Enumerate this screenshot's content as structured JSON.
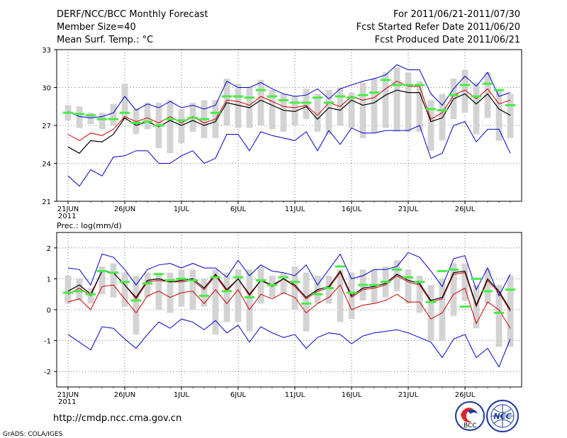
{
  "header": {
    "title": "DERF/NCC/BCC Monthly Forecast",
    "member_size": "Member Size=40",
    "variable": "Mean Surf. Temp.: °C",
    "period": "For 2011/06/21-2011/07/30",
    "started": "Fcst Started Refer Date 2011/06/20",
    "produced": "Fcst Produced Date 2011/06/21"
  },
  "footer": {
    "url": "http://cmdp.ncc.cma.gov.cn",
    "credit": "GrADS: COLA/IGES",
    "logo_bcc": "BCC",
    "logo_ncc": "NCC"
  },
  "colors": {
    "max_min": "#0000cc",
    "mean": "#000000",
    "median": "#cc0000",
    "observed_mark": "#44ee44",
    "spread_bar": "#d3d3d3",
    "grid": "#555555"
  },
  "chart_data": [
    {
      "type": "line",
      "title": "Mean Surf. Temp.: °C",
      "x_tick_labels": [
        "21JUN",
        "26JUN",
        "1JUL",
        "6JUL",
        "11JUL",
        "16JUL",
        "21JUL",
        "26JUL"
      ],
      "x_tick_days": [
        1,
        6,
        11,
        16,
        21,
        26,
        31,
        36
      ],
      "year_label": "2011",
      "ylim": [
        21,
        33
      ],
      "yticks": [
        21,
        24,
        27,
        30,
        33
      ],
      "days": [
        1,
        2,
        3,
        4,
        5,
        6,
        7,
        8,
        9,
        10,
        11,
        12,
        13,
        14,
        15,
        16,
        17,
        18,
        19,
        20,
        21,
        22,
        23,
        24,
        25,
        26,
        27,
        28,
        29,
        30,
        31,
        32,
        33,
        34,
        35,
        36,
        37,
        38,
        39,
        40
      ],
      "series": [
        {
          "name": "max",
          "values": [
            28.1,
            27.7,
            27.6,
            27.7,
            28.0,
            29.3,
            28.2,
            28.7,
            28.4,
            28.9,
            28.4,
            28.6,
            28.3,
            28.6,
            30.5,
            30.0,
            30.0,
            30.4,
            29.9,
            29.5,
            29.3,
            29.4,
            29.9,
            29.1,
            29.9,
            30.2,
            30.5,
            30.7,
            31.0,
            31.8,
            31.4,
            31.4,
            29.5,
            28.6,
            29.9,
            30.9,
            30.1,
            31.2,
            29.3,
            29.6
          ]
        },
        {
          "name": "mean",
          "values": [
            25.3,
            24.8,
            25.8,
            25.7,
            26.3,
            27.6,
            27.0,
            27.3,
            26.9,
            27.4,
            27.0,
            27.4,
            27.0,
            27.3,
            28.8,
            28.6,
            28.4,
            29.0,
            28.6,
            28.2,
            28.1,
            28.5,
            27.5,
            28.4,
            28.2,
            29.0,
            28.6,
            28.8,
            29.4,
            29.8,
            29.6,
            29.6,
            27.3,
            27.6,
            29.1,
            29.5,
            28.7,
            29.5,
            28.3,
            27.8
          ]
        },
        {
          "name": "median",
          "values": [
            26.3,
            25.8,
            26.4,
            26.2,
            26.7,
            27.7,
            27.3,
            27.6,
            27.2,
            27.7,
            27.2,
            27.7,
            27.2,
            27.5,
            29.0,
            28.9,
            28.6,
            29.3,
            28.9,
            28.5,
            28.4,
            28.6,
            27.8,
            28.8,
            28.5,
            29.3,
            29.0,
            29.2,
            29.9,
            30.5,
            30.1,
            30.1,
            27.5,
            28.0,
            29.4,
            29.8,
            29.1,
            29.9,
            28.7,
            29.0
          ]
        },
        {
          "name": "min",
          "values": [
            23.0,
            22.2,
            23.5,
            23.0,
            24.5,
            24.6,
            25.0,
            25.0,
            24.0,
            24.0,
            24.6,
            25.0,
            24.0,
            24.4,
            26.3,
            26.3,
            25.0,
            26.5,
            26.2,
            26.0,
            25.8,
            26.5,
            25.0,
            26.6,
            25.5,
            26.8,
            26.4,
            26.4,
            26.6,
            26.6,
            26.6,
            27.0,
            24.4,
            24.8,
            27.0,
            27.3,
            25.7,
            26.7,
            26.7,
            24.8
          ]
        },
        {
          "name": "spread_high",
          "values": [
            28.6,
            28.5,
            28.0,
            28.0,
            28.7,
            30.3,
            28.3,
            28.8,
            28.8,
            29.0,
            28.3,
            28.8,
            29.0,
            29.0,
            30.7,
            30.3,
            30.0,
            30.6,
            29.8,
            29.5,
            29.3,
            29.9,
            29.5,
            29.8,
            30.0,
            29.6,
            30.4,
            30.7,
            31.2,
            31.6,
            31.2,
            30.5,
            29.0,
            29.5,
            30.7,
            31.4,
            30.4,
            31.2,
            29.9,
            29.5
          ]
        },
        {
          "name": "spread_low",
          "values": [
            27.4,
            26.8,
            27.1,
            26.7,
            27.0,
            27.4,
            26.3,
            26.7,
            25.2,
            24.8,
            25.6,
            26.5,
            26.0,
            26.0,
            27.0,
            26.8,
            26.8,
            27.0,
            26.7,
            26.5,
            27.0,
            27.5,
            26.5,
            26.3,
            27.0,
            26.8,
            26.0,
            26.4,
            26.8,
            26.5,
            26.5,
            26.5,
            25.0,
            25.8,
            27.5,
            28.0,
            26.3,
            27.6,
            25.8,
            26.0
          ]
        },
        {
          "name": "observed",
          "values": [
            28.0,
            27.9,
            27.8,
            27.5,
            27.5,
            28.0,
            27.2,
            27.3,
            27.0,
            27.5,
            27.4,
            27.6,
            27.5,
            28.0,
            29.3,
            29.3,
            29.2,
            29.8,
            29.3,
            29.0,
            28.8,
            28.8,
            29.2,
            28.8,
            29.3,
            29.2,
            29.4,
            29.6,
            30.6,
            30.2,
            30.2,
            30.2,
            28.3,
            28.2,
            29.4,
            30.2,
            29.3,
            30.3,
            29.8,
            28.6
          ]
        }
      ]
    },
    {
      "type": "line",
      "title": "Prec.: log(mm/d)",
      "x_tick_labels": [
        "21JUN",
        "26JUN",
        "1JUL",
        "6JUL",
        "11JUL",
        "16JUL",
        "21JUL",
        "26JUL"
      ],
      "x_tick_days": [
        1,
        6,
        11,
        16,
        21,
        26,
        31,
        36
      ],
      "year_label": "2011",
      "ylim": [
        -2.5,
        2.5
      ],
      "yticks": [
        -2,
        -1,
        0,
        1,
        2
      ],
      "days": [
        1,
        2,
        3,
        4,
        5,
        6,
        7,
        8,
        9,
        10,
        11,
        12,
        13,
        14,
        15,
        16,
        17,
        18,
        19,
        20,
        21,
        22,
        23,
        24,
        25,
        26,
        27,
        28,
        29,
        30,
        31,
        32,
        33,
        34,
        35,
        36,
        37,
        38,
        39,
        40
      ],
      "series": [
        {
          "name": "max",
          "values": [
            1.35,
            1.3,
            0.8,
            1.8,
            1.7,
            1.3,
            0.8,
            1.3,
            1.45,
            1.5,
            1.35,
            1.5,
            1.35,
            1.35,
            1.05,
            1.6,
            1.1,
            1.45,
            1.25,
            1.2,
            1.1,
            1.45,
            0.8,
            1.3,
            1.8,
            1.0,
            1.1,
            1.3,
            1.3,
            1.4,
            1.85,
            1.7,
            1.25,
            0.75,
            1.65,
            1.75,
            0.65,
            1.35,
            0.45,
            1.15
          ]
        },
        {
          "name": "mean",
          "values": [
            0.6,
            0.8,
            0.5,
            1.25,
            1.2,
            0.8,
            0.4,
            0.95,
            1.0,
            0.9,
            0.95,
            1.0,
            0.7,
            1.15,
            0.65,
            1.0,
            0.5,
            0.95,
            0.8,
            1.0,
            0.8,
            0.4,
            0.65,
            0.75,
            1.25,
            0.45,
            0.7,
            0.75,
            0.85,
            1.15,
            0.95,
            0.85,
            0.3,
            0.4,
            1.2,
            1.25,
            0.15,
            1.0,
            0.6,
            0.0
          ]
        },
        {
          "name": "median",
          "values": [
            0.5,
            0.7,
            0.45,
            1.25,
            1.2,
            0.8,
            0.35,
            0.9,
            0.95,
            0.9,
            0.9,
            0.95,
            0.65,
            1.1,
            0.6,
            1.0,
            0.45,
            0.95,
            0.75,
            1.0,
            0.75,
            0.35,
            0.6,
            0.7,
            1.2,
            0.4,
            0.65,
            0.7,
            0.8,
            1.1,
            0.9,
            0.8,
            0.25,
            0.35,
            1.15,
            1.2,
            0.1,
            0.95,
            0.55,
            -0.05
          ]
        },
        {
          "name": "red_low",
          "values": [
            0.25,
            0.35,
            0.0,
            0.75,
            0.8,
            0.35,
            -0.1,
            0.45,
            0.6,
            0.4,
            0.55,
            0.6,
            0.2,
            0.65,
            0.2,
            0.65,
            0.0,
            0.5,
            0.35,
            0.55,
            0.4,
            -0.1,
            0.2,
            0.4,
            0.8,
            0.0,
            0.15,
            0.2,
            0.3,
            0.5,
            0.25,
            0.25,
            -0.3,
            -0.1,
            0.5,
            0.7,
            -0.45,
            0.25,
            0.0,
            -0.6
          ]
        },
        {
          "name": "min",
          "values": [
            -0.8,
            -1.05,
            -1.3,
            -0.55,
            -0.6,
            -0.95,
            -1.25,
            -0.8,
            -0.4,
            -0.6,
            -0.3,
            -0.4,
            -0.65,
            -0.35,
            -0.75,
            -0.5,
            -1.05,
            -0.55,
            -0.75,
            -0.9,
            -0.8,
            -1.25,
            -0.9,
            -0.75,
            -0.8,
            -1.1,
            -0.85,
            -0.75,
            -0.7,
            -0.65,
            -0.75,
            -0.9,
            -1.05,
            -1.55,
            -0.95,
            -0.8,
            -1.55,
            -1.25,
            -1.85,
            -0.95
          ]
        },
        {
          "name": "spread_high",
          "values": [
            1.1,
            1.0,
            0.7,
            1.4,
            1.5,
            1.2,
            1.1,
            1.2,
            1.2,
            1.2,
            1.3,
            1.3,
            1.0,
            1.3,
            1.2,
            1.3,
            1.3,
            1.4,
            1.1,
            1.2,
            1.4,
            1.2,
            1.1,
            1.1,
            1.3,
            1.2,
            1.3,
            1.3,
            1.4,
            1.6,
            1.3,
            1.1,
            0.8,
            1.0,
            1.5,
            1.5,
            0.8,
            1.3,
            0.8,
            1.1
          ]
        },
        {
          "name": "spread_low",
          "values": [
            0.2,
            0.3,
            0.2,
            0.5,
            0.4,
            0.1,
            -0.8,
            0.4,
            0.0,
            -0.1,
            0.1,
            0.0,
            0.1,
            -0.8,
            -0.4,
            -0.4,
            -0.7,
            0.2,
            0.4,
            0.5,
            0.0,
            -0.7,
            0.2,
            0.2,
            -0.4,
            -0.3,
            0.3,
            0.2,
            0.4,
            0.6,
            0.2,
            -0.1,
            -1.0,
            -1.0,
            -0.2,
            0.3,
            -0.6,
            0.2,
            -1.2,
            -1.2
          ]
        },
        {
          "name": "observed",
          "values": [
            0.55,
            0.6,
            0.5,
            1.25,
            1.2,
            0.9,
            0.3,
            0.85,
            1.15,
            0.95,
            1.0,
            0.95,
            0.45,
            1.05,
            0.6,
            1.05,
            0.4,
            0.95,
            0.8,
            1.05,
            0.9,
            0.2,
            0.5,
            0.7,
            1.4,
            0.55,
            0.8,
            0.8,
            0.9,
            1.3,
            1.05,
            0.9,
            0.25,
            1.25,
            1.3,
            0.1,
            1.0,
            0.6,
            -0.1,
            0.65
          ]
        }
      ]
    }
  ]
}
